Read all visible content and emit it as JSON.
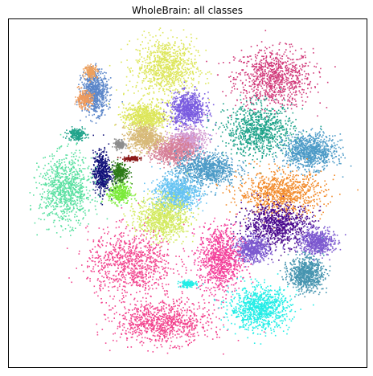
{
  "chart_data": {
    "type": "scatter",
    "title": "WholeBrain: all classes",
    "xlabel": "",
    "ylabel": "",
    "axes_ticks": "none",
    "grid": false,
    "legend": "none",
    "clusters": [
      {
        "color": "#d13a7a",
        "cx": 0.74,
        "cy": 0.83,
        "sx": 0.09,
        "sy": 0.07
      },
      {
        "color": "#dde65a",
        "cx": 0.44,
        "cy": 0.86,
        "sx": 0.07,
        "sy": 0.07
      },
      {
        "color": "#dde65a",
        "cx": 0.38,
        "cy": 0.72,
        "sx": 0.05,
        "sy": 0.03
      },
      {
        "color": "#7a5ce0",
        "cx": 0.5,
        "cy": 0.74,
        "sx": 0.04,
        "sy": 0.04
      },
      {
        "color": "#5b86c9",
        "cx": 0.24,
        "cy": 0.79,
        "sx": 0.03,
        "sy": 0.05
      },
      {
        "color": "#ee9a5c",
        "cx": 0.21,
        "cy": 0.77,
        "sx": 0.02,
        "sy": 0.02
      },
      {
        "color": "#eca05e",
        "cx": 0.23,
        "cy": 0.85,
        "sx": 0.015,
        "sy": 0.015
      },
      {
        "color": "#1fa38a",
        "cx": 0.7,
        "cy": 0.68,
        "sx": 0.08,
        "sy": 0.06
      },
      {
        "color": "#1fa38a",
        "cx": 0.19,
        "cy": 0.67,
        "sx": 0.02,
        "sy": 0.015
      },
      {
        "color": "#d39ad0",
        "cx": 0.5,
        "cy": 0.65,
        "sx": 0.04,
        "sy": 0.03
      },
      {
        "color": "#d67f97",
        "cx": 0.46,
        "cy": 0.62,
        "sx": 0.05,
        "sy": 0.03
      },
      {
        "color": "#d7b978",
        "cx": 0.38,
        "cy": 0.66,
        "sx": 0.04,
        "sy": 0.03
      },
      {
        "color": "#4c9bc7",
        "cx": 0.55,
        "cy": 0.57,
        "sx": 0.07,
        "sy": 0.04
      },
      {
        "color": "#4c9bc7",
        "cx": 0.84,
        "cy": 0.62,
        "sx": 0.06,
        "sy": 0.04
      },
      {
        "color": "#f28a2a",
        "cx": 0.76,
        "cy": 0.5,
        "sx": 0.1,
        "sy": 0.05
      },
      {
        "color": "#66c3f2",
        "cx": 0.47,
        "cy": 0.5,
        "sx": 0.05,
        "sy": 0.04
      },
      {
        "color": "#d3ea60",
        "cx": 0.43,
        "cy": 0.43,
        "sx": 0.06,
        "sy": 0.05
      },
      {
        "color": "#7bea3a",
        "cx": 0.31,
        "cy": 0.5,
        "sx": 0.025,
        "sy": 0.025
      },
      {
        "color": "#2d7a18",
        "cx": 0.31,
        "cy": 0.56,
        "sx": 0.02,
        "sy": 0.025
      },
      {
        "color": "#12127a",
        "cx": 0.26,
        "cy": 0.56,
        "sx": 0.02,
        "sy": 0.05
      },
      {
        "color": "#8b1a1a",
        "cx": 0.34,
        "cy": 0.6,
        "sx": 0.02,
        "sy": 0.006
      },
      {
        "color": "#8c8c8c",
        "cx": 0.31,
        "cy": 0.64,
        "sx": 0.012,
        "sy": 0.012
      },
      {
        "color": "#5ae0a1",
        "cx": 0.16,
        "cy": 0.51,
        "sx": 0.06,
        "sy": 0.08
      },
      {
        "color": "#4b0a8f",
        "cx": 0.75,
        "cy": 0.41,
        "sx": 0.08,
        "sy": 0.05
      },
      {
        "color": "#7d5ad0",
        "cx": 0.68,
        "cy": 0.34,
        "sx": 0.04,
        "sy": 0.03
      },
      {
        "color": "#7d5ad0",
        "cx": 0.86,
        "cy": 0.36,
        "sx": 0.04,
        "sy": 0.03
      },
      {
        "color": "#4795b0",
        "cx": 0.83,
        "cy": 0.27,
        "sx": 0.04,
        "sy": 0.04
      },
      {
        "color": "#f33f9a",
        "cx": 0.59,
        "cy": 0.31,
        "sx": 0.05,
        "sy": 0.08
      },
      {
        "color": "#f2448e",
        "cx": 0.34,
        "cy": 0.3,
        "sx": 0.1,
        "sy": 0.08
      },
      {
        "color": "#f2448e",
        "cx": 0.43,
        "cy": 0.13,
        "sx": 0.11,
        "sy": 0.05
      },
      {
        "color": "#22ede6",
        "cx": 0.7,
        "cy": 0.17,
        "sx": 0.07,
        "sy": 0.05
      },
      {
        "color": "#22ede6",
        "cx": 0.5,
        "cy": 0.24,
        "sx": 0.02,
        "sy": 0.008
      }
    ]
  }
}
